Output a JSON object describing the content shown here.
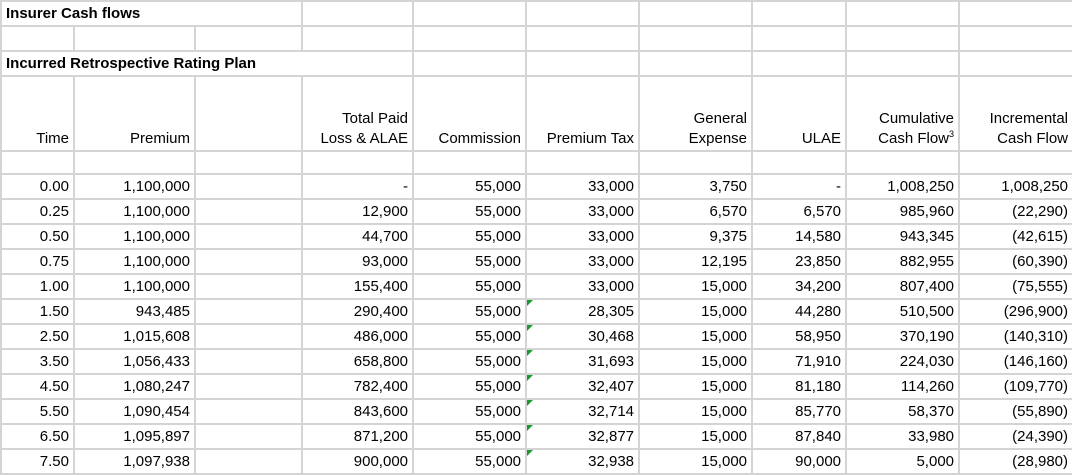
{
  "sheet": {
    "title1": "Insurer Cash flows",
    "title2": "Incurred Retrospective Rating Plan",
    "headers": {
      "time": "Time",
      "premium": "Premium",
      "loss_l1": "Total Paid",
      "loss_l2": "Loss & ALAE",
      "commission": "Commission",
      "premium_tax": "Premium Tax",
      "expense_l1": "General",
      "expense_l2": "Expense",
      "ulae": "ULAE",
      "cum_l1": "Cumulative",
      "cum_l2": "Cash Flow",
      "cum_sup": "3",
      "inc_l1": "Incremental",
      "inc_l2": "Cash Flow"
    },
    "rows": [
      [
        "0.00",
        "1,100,000",
        "-",
        "55,000",
        "33,000",
        "3,750",
        "-",
        "1,008,250",
        "1,008,250"
      ],
      [
        "0.25",
        "1,100,000",
        "12,900",
        "55,000",
        "33,000",
        "6,570",
        "6,570",
        "985,960",
        "(22,290)"
      ],
      [
        "0.50",
        "1,100,000",
        "44,700",
        "55,000",
        "33,000",
        "9,375",
        "14,580",
        "943,345",
        "(42,615)"
      ],
      [
        "0.75",
        "1,100,000",
        "93,000",
        "55,000",
        "33,000",
        "12,195",
        "23,850",
        "882,955",
        "(60,390)"
      ],
      [
        "1.00",
        "1,100,000",
        "155,400",
        "55,000",
        "33,000",
        "15,000",
        "34,200",
        "807,400",
        "(75,555)"
      ],
      [
        "1.50",
        "943,485",
        "290,400",
        "55,000",
        "28,305",
        "15,000",
        "44,280",
        "510,500",
        "(296,900)"
      ],
      [
        "2.50",
        "1,015,608",
        "486,000",
        "55,000",
        "30,468",
        "15,000",
        "58,950",
        "370,190",
        "(140,310)"
      ],
      [
        "3.50",
        "1,056,433",
        "658,800",
        "55,000",
        "31,693",
        "15,000",
        "71,910",
        "224,030",
        "(146,160)"
      ],
      [
        "4.50",
        "1,080,247",
        "782,400",
        "55,000",
        "32,407",
        "15,000",
        "81,180",
        "114,260",
        "(109,770)"
      ],
      [
        "5.50",
        "1,090,454",
        "843,600",
        "55,000",
        "32,714",
        "15,000",
        "85,770",
        "58,370",
        "(55,890)"
      ],
      [
        "6.50",
        "1,095,897",
        "871,200",
        "55,000",
        "32,877",
        "15,000",
        "87,840",
        "33,980",
        "(24,390)"
      ],
      [
        "7.50",
        "1,097,938",
        "900,000",
        "55,000",
        "32,938",
        "15,000",
        "90,000",
        "5,000",
        "(28,980)"
      ]
    ],
    "flagged_row_start": 5,
    "flag_color": "#1a9a2e",
    "gridline_color": "#d4d4d4"
  }
}
